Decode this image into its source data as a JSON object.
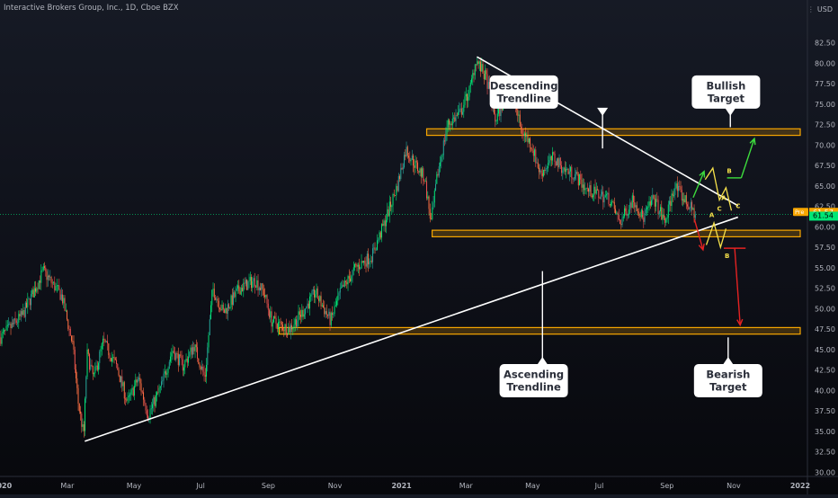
{
  "header": {
    "title": "Interactive Brokers Group, Inc., 1D, Cboe BZX",
    "currency": "USD"
  },
  "colors": {
    "up": "#26a69a",
    "up_bright": "#00e676",
    "down": "#ef5350",
    "down_orange": "#ff7043",
    "zone": "#f7a600",
    "trendline": "#ffffff",
    "arrow_bull": "#3ddc3d",
    "arrow_bear": "#e52222",
    "wave_label": "#f5e04a"
  },
  "chart_data": {
    "type": "candlestick",
    "ylim": [
      29.5,
      85
    ],
    "y_ticks": [
      "30.00",
      "32.50",
      "35.00",
      "37.50",
      "40.00",
      "42.50",
      "45.00",
      "47.50",
      "50.00",
      "52.50",
      "55.00",
      "57.50",
      "60.00",
      "62.50",
      "65.00",
      "67.50",
      "70.00",
      "72.50",
      "75.00",
      "77.50",
      "80.00",
      "82.50"
    ],
    "x_ticks": [
      "2020",
      "Mar",
      "May",
      "Jul",
      "Sep",
      "Nov",
      "2021",
      "Mar",
      "May",
      "Jul",
      "Sep",
      "Nov",
      "2022"
    ],
    "price_badges": [
      {
        "tag": "Pre",
        "value": "61.57",
        "y": 61.57
      },
      {
        "tag": "",
        "value": "61.54",
        "y": 61.54
      }
    ],
    "series_path": [
      [
        "2019-12-31",
        46.5
      ],
      [
        "2020-01-20",
        49.2
      ],
      [
        "2020-02-08",
        54.6
      ],
      [
        "2020-02-25",
        51.5
      ],
      [
        "2020-03-06",
        45.5
      ],
      [
        "2020-03-11",
        38.5
      ],
      [
        "2020-03-16",
        34.5
      ],
      [
        "2020-03-19",
        44.5
      ],
      [
        "2020-03-25",
        41.5
      ],
      [
        "2020-04-03",
        46.0
      ],
      [
        "2020-04-15",
        43.0
      ],
      [
        "2020-04-25",
        38.5
      ],
      [
        "2020-05-05",
        41.5
      ],
      [
        "2020-05-14",
        37.0
      ],
      [
        "2020-05-26",
        40.5
      ],
      [
        "2020-06-05",
        45.0
      ],
      [
        "2020-06-15",
        43.0
      ],
      [
        "2020-06-25",
        45.5
      ],
      [
        "2020-07-05",
        41.5
      ],
      [
        "2020-07-12",
        52.5
      ],
      [
        "2020-07-22",
        49.5
      ],
      [
        "2020-08-06",
        52.5
      ],
      [
        "2020-08-20",
        53.5
      ],
      [
        "2020-08-28",
        52.0
      ],
      [
        "2020-09-04",
        48.5
      ],
      [
        "2020-09-20",
        47.5
      ],
      [
        "2020-10-02",
        49.5
      ],
      [
        "2020-10-14",
        52.0
      ],
      [
        "2020-10-28",
        48.5
      ],
      [
        "2020-11-06",
        52.0
      ],
      [
        "2020-11-20",
        55.0
      ],
      [
        "2020-12-05",
        56.5
      ],
      [
        "2020-12-15",
        60.0
      ],
      [
        "2020-12-28",
        65.0
      ],
      [
        "2021-01-05",
        69.5
      ],
      [
        "2021-01-14",
        67.5
      ],
      [
        "2021-01-22",
        66.0
      ],
      [
        "2021-01-28",
        60.5
      ],
      [
        "2021-02-03",
        66.5
      ],
      [
        "2021-02-12",
        72.5
      ],
      [
        "2021-02-24",
        74.0
      ],
      [
        "2021-03-05",
        77.0
      ],
      [
        "2021-03-10",
        80.5
      ],
      [
        "2021-03-20",
        78.0
      ],
      [
        "2021-03-28",
        73.0
      ],
      [
        "2021-04-05",
        75.5
      ],
      [
        "2021-04-12",
        77.0
      ],
      [
        "2021-04-20",
        72.0
      ],
      [
        "2021-04-30",
        70.0
      ],
      [
        "2021-05-08",
        66.5
      ],
      [
        "2021-05-20",
        68.5
      ],
      [
        "2021-05-30",
        67.0
      ],
      [
        "2021-06-08",
        66.5
      ],
      [
        "2021-06-20",
        64.5
      ],
      [
        "2021-06-30",
        64.0
      ],
      [
        "2021-07-10",
        63.5
      ],
      [
        "2021-07-20",
        60.5
      ],
      [
        "2021-08-01",
        63.5
      ],
      [
        "2021-08-10",
        61.0
      ],
      [
        "2021-08-20",
        63.5
      ],
      [
        "2021-08-30",
        60.5
      ],
      [
        "2021-09-08",
        65.0
      ],
      [
        "2021-09-16",
        63.5
      ],
      [
        "2021-09-27",
        61.5
      ]
    ],
    "zones": [
      {
        "name": "resistance-zone",
        "x0": "2021-01-24",
        "x1": "2022-01-01",
        "y0": 71.2,
        "y1": 72.0
      },
      {
        "name": "support-zone-upper",
        "x0": "2021-01-29",
        "x1": "2022-01-01",
        "y0": 58.8,
        "y1": 59.6
      },
      {
        "name": "support-zone-lower",
        "x0": "2020-09-11",
        "x1": "2022-01-01",
        "y0": 46.9,
        "y1": 47.7
      }
    ],
    "trendlines": [
      {
        "name": "descending-trendline",
        "x0": "2021-03-11",
        "y0": 80.8,
        "x1": "2021-11-05",
        "y1": 62.6
      },
      {
        "name": "ascending-trendline",
        "x0": "2020-03-17",
        "y0": 33.8,
        "x1": "2021-11-05",
        "y1": 61.2
      }
    ],
    "callouts": [
      {
        "name": "descending-trendline-callout",
        "line1": "Descending",
        "line2": "Trendline",
        "x": "2021-04-23",
        "y": 76.5,
        "pointer_x": "2021-07-04",
        "pointer_y": 69.6
      },
      {
        "name": "bullish-target-callout",
        "line1": "Bullish",
        "line2": "Target",
        "x": "2021-10-25",
        "y": 76.5,
        "pointer_x": "2021-10-29",
        "pointer_y": 72.2
      },
      {
        "name": "ascending-trendline-callout",
        "line1": "Ascending",
        "line2": "Trendline",
        "x": "2021-05-02",
        "y": 41.2,
        "pointer_x": "2021-05-10",
        "pointer_y": 54.6
      },
      {
        "name": "bearish-target-callout",
        "line1": "Bearish",
        "line2": "Target",
        "x": "2021-10-27",
        "y": 41.2,
        "pointer_x": "2021-10-27",
        "pointer_y": 46.5
      }
    ],
    "bull_scenario": {
      "arrow1": {
        "x0": "2021-09-25",
        "y0": 63.6,
        "x1": "2021-10-05",
        "y1": 66.8
      },
      "zigzag": [
        [
          "2021-10-06",
          65.8
        ],
        [
          "2021-10-13",
          67.2
        ],
        [
          "2021-10-19",
          63.3
        ],
        [
          "2021-10-25",
          64.8
        ],
        [
          "2021-10-30",
          62.0
        ]
      ],
      "labels": [
        {
          "t": "B",
          "x": "2021-10-28",
          "y": 66.6
        },
        {
          "t": "A",
          "x": "2021-10-23",
          "y": 63.3
        },
        {
          "t": "C",
          "x": "2021-11-05",
          "y": 62.3
        }
      ],
      "arrow2_base": {
        "x0": "2021-10-26",
        "y0": 66.0,
        "x1": "2021-11-08",
        "y1": 66.0
      },
      "arrow2": {
        "x0": "2021-11-08",
        "y0": 66.0,
        "x1": "2021-11-20",
        "y1": 70.8
      }
    },
    "bear_scenario": {
      "arrow1": {
        "x0": "2021-09-26",
        "y0": 61.0,
        "x1": "2021-10-04",
        "y1": 57.2
      },
      "zigzag": [
        [
          "2021-10-07",
          57.8
        ],
        [
          "2021-10-14",
          60.5
        ],
        [
          "2021-10-20",
          57.5
        ],
        [
          "2021-10-25",
          59.8
        ]
      ],
      "labels": [
        {
          "t": "A",
          "x": "2021-10-12",
          "y": 61.2
        },
        {
          "t": "C",
          "x": "2021-10-19",
          "y": 62.0
        },
        {
          "t": "B",
          "x": "2021-10-26",
          "y": 56.2
        }
      ],
      "arrow2_base": {
        "x0": "2021-10-23",
        "y0": 57.4,
        "x1": "2021-11-12",
        "y1": 57.4
      },
      "arrow2": {
        "x0": "2021-11-02",
        "y0": 57.4,
        "x1": "2021-11-07",
        "y1": 48.0
      }
    }
  }
}
